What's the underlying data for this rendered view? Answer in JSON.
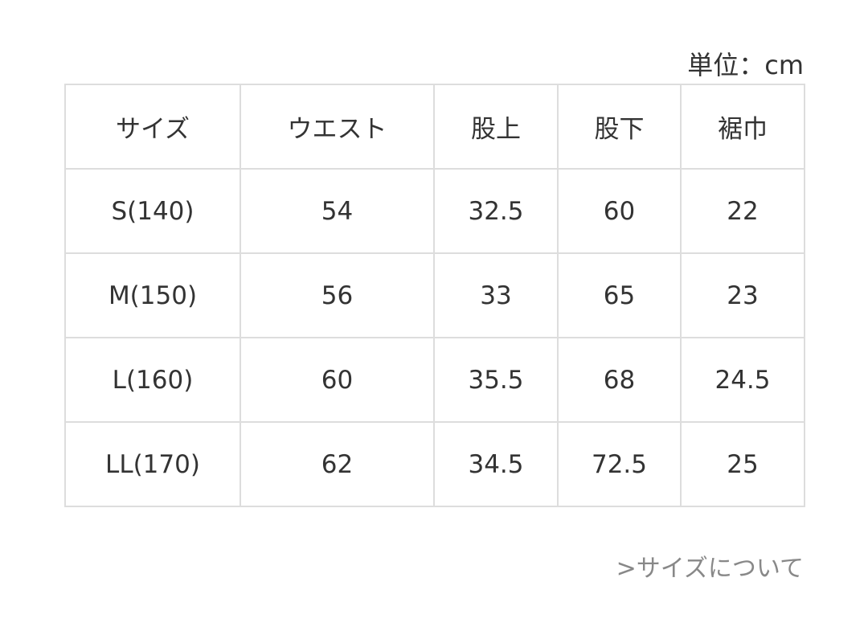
{
  "unit": "単位：cm",
  "table": {
    "header": [
      "サイズ",
      "ウエスト",
      "股上",
      "股下",
      "裾巾"
    ],
    "rows": [
      [
        "S(140)",
        54,
        32.5,
        60,
        22
      ],
      [
        "M(150)",
        56,
        33,
        65,
        23
      ],
      [
        "L(160)",
        60,
        35.5,
        68,
        24.5
      ],
      [
        "LL(170)",
        62,
        34.5,
        72.5,
        25
      ]
    ]
  },
  "link": ">サイズについて"
}
